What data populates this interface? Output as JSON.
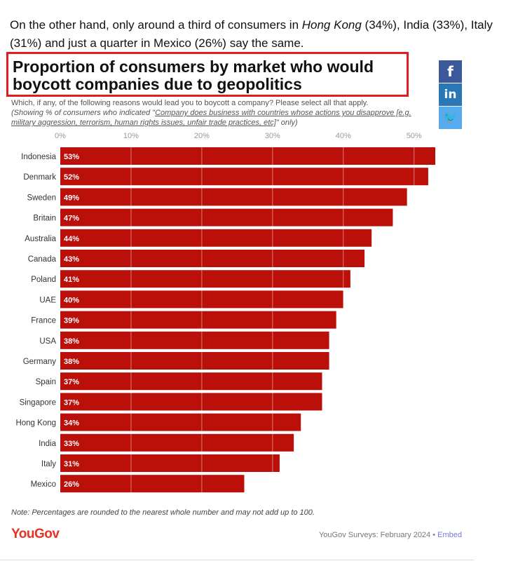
{
  "intro": {
    "part1": "On the other hand, only around a third of consumers in ",
    "hk": "Hong Kong",
    "part2": " (34%), India (33%), Italy (31%) and just a quarter in Mexico (26%) say the same."
  },
  "share": {
    "facebook": "f",
    "linkedin": "in",
    "twitter": "🐦"
  },
  "footer": {
    "note": "Note: Percentages are rounded to the nearest whole number and may not add up to 100.",
    "brand": "YouGov",
    "source": "YouGov Surveys: February 2024",
    "separator": " • ",
    "embed": "Embed"
  },
  "colors": {
    "bar": "#bb0f0a",
    "highlight_border": "#e01b24",
    "brand": "#e63323"
  },
  "chart_data": {
    "type": "bar",
    "orientation": "horizontal",
    "title": "Proportion of consumers by market who would boycott companies due to geopolitics",
    "subtitle": {
      "question": "Which, if any, of the following reasons would lead you to boycott a company? Please select all that apply.",
      "showing_prefix": "(Showing % of consumers who indicated \"",
      "showing_option": "Company does business with countries whose actions you disapprove [e.g. military aggression, terrorism, human rights issues, unfair trade practices, etc]",
      "showing_suffix": "\" only)"
    },
    "categories": [
      "Indonesia",
      "Denmark",
      "Sweden",
      "Britain",
      "Australia",
      "Canada",
      "Poland",
      "UAE",
      "France",
      "USA",
      "Germany",
      "Spain",
      "Singapore",
      "Hong Kong",
      "India",
      "Italy",
      "Mexico"
    ],
    "values": [
      53,
      52,
      49,
      47,
      44,
      43,
      41,
      40,
      39,
      38,
      38,
      37,
      37,
      34,
      33,
      31,
      26
    ],
    "value_suffix": "%",
    "xlim": [
      0,
      53
    ],
    "xticks": [
      0,
      10,
      20,
      30,
      40,
      50
    ],
    "xtick_labels": [
      "0%",
      "10%",
      "20%",
      "30%",
      "40%",
      "50%"
    ],
    "grid": true,
    "xaxis_position": "top"
  }
}
